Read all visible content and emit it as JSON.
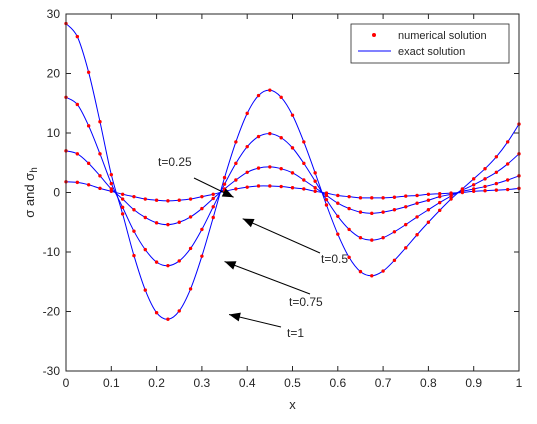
{
  "chart_data": {
    "type": "line",
    "title": "",
    "xlabel": "x",
    "ylabel": {
      "base": "σ and σ",
      "sub": "h"
    },
    "xlim": [
      0,
      1
    ],
    "ylim": [
      -30,
      30
    ],
    "xticks": [
      0,
      0.1,
      0.2,
      0.3,
      0.4,
      0.5,
      0.6,
      0.7,
      0.8,
      0.9,
      1
    ],
    "yticks": [
      -30,
      -20,
      -10,
      0,
      10,
      20,
      30
    ],
    "xtick_labels": [
      "0",
      "0.1",
      "0.2",
      "0.3",
      "0.4",
      "0.5",
      "0.6",
      "0.7",
      "0.8",
      "0.9",
      "1"
    ],
    "ytick_labels": [
      "-30",
      "-20",
      "-10",
      "0",
      "10",
      "20",
      "30"
    ],
    "grid": false,
    "legend": {
      "placement": "top-right",
      "entries": [
        {
          "label": "numerical solution",
          "marker": "dot",
          "color": "#ff0000"
        },
        {
          "label": "exact solution",
          "marker": "line",
          "color": "#0000ff"
        }
      ]
    },
    "exact_color": "#0000ff",
    "numerical_color": "#ff0000",
    "x": [
      0,
      0.025,
      0.05,
      0.075,
      0.1,
      0.125,
      0.15,
      0.175,
      0.2,
      0.225,
      0.25,
      0.275,
      0.3,
      0.325,
      0.35,
      0.375,
      0.4,
      0.425,
      0.45,
      0.475,
      0.5,
      0.525,
      0.55,
      0.575,
      0.6,
      0.625,
      0.65,
      0.675,
      0.7,
      0.725,
      0.75,
      0.775,
      0.8,
      0.825,
      0.85,
      0.875,
      0.9,
      0.925,
      0.95,
      0.975,
      1
    ],
    "series": [
      {
        "annotation": "t=1",
        "values": [
          28.4,
          26.2,
          20.2,
          11.9,
          3.0,
          -3.6,
          -10.6,
          -16.4,
          -20.2,
          -21.3,
          -19.9,
          -16.2,
          -10.7,
          -4.2,
          2.5,
          8.5,
          13.3,
          16.3,
          17.2,
          16.0,
          13.0,
          8.5,
          3.3,
          -2.1,
          -7.0,
          -10.9,
          -13.3,
          -14.0,
          -13.2,
          -11.4,
          -9.3,
          -7.1,
          -5.0,
          -3.0,
          -1.1,
          0.6,
          2.3,
          4.0,
          6.0,
          8.5,
          11.5
        ]
      },
      {
        "annotation": "t=0.75",
        "values": [
          16.0,
          14.8,
          11.2,
          6.5,
          1.5,
          -2.5,
          -6.5,
          -9.6,
          -11.7,
          -12.3,
          -11.5,
          -9.4,
          -6.2,
          -2.4,
          1.4,
          4.9,
          7.7,
          9.4,
          9.9,
          9.2,
          7.5,
          4.9,
          1.9,
          -1.2,
          -4.0,
          -6.2,
          -7.6,
          -8.0,
          -7.6,
          -6.6,
          -5.4,
          -4.1,
          -2.9,
          -1.7,
          -0.6,
          0.4,
          1.3,
          2.3,
          3.4,
          4.8,
          6.5
        ]
      },
      {
        "annotation": "t=0.5",
        "values": [
          7.0,
          6.5,
          4.9,
          2.8,
          0.6,
          -1.1,
          -2.9,
          -4.2,
          -5.1,
          -5.4,
          -5.0,
          -4.1,
          -2.7,
          -1.0,
          0.6,
          2.1,
          3.4,
          4.1,
          4.3,
          4.0,
          3.3,
          2.1,
          0.8,
          -0.5,
          -1.8,
          -2.7,
          -3.3,
          -3.5,
          -3.3,
          -2.9,
          -2.4,
          -1.8,
          -1.3,
          -0.7,
          -0.3,
          0.2,
          0.6,
          1.0,
          1.5,
          2.1,
          2.8
        ]
      },
      {
        "annotation": "t=0.25",
        "values": [
          1.8,
          1.7,
          1.3,
          0.7,
          0.2,
          -0.3,
          -0.7,
          -1.1,
          -1.3,
          -1.4,
          -1.3,
          -1.1,
          -0.7,
          -0.3,
          0.2,
          0.6,
          0.9,
          1.1,
          1.1,
          1.0,
          0.8,
          0.6,
          0.2,
          -0.1,
          -0.5,
          -0.7,
          -0.9,
          -0.9,
          -0.9,
          -0.8,
          -0.6,
          -0.5,
          -0.3,
          -0.2,
          -0.1,
          0.0,
          0.2,
          0.3,
          0.4,
          0.5,
          0.7
        ]
      }
    ],
    "annotations": [
      {
        "text": "t=0.25",
        "arrow_to": [
          0.37,
          -0.8
        ]
      },
      {
        "text": "t=0.5",
        "arrow_to": [
          0.39,
          -4.4
        ]
      },
      {
        "text": "t=0.75",
        "arrow_to": [
          0.35,
          -11.6
        ]
      },
      {
        "text": "t=1",
        "arrow_to": [
          0.36,
          -20.5
        ]
      }
    ]
  }
}
